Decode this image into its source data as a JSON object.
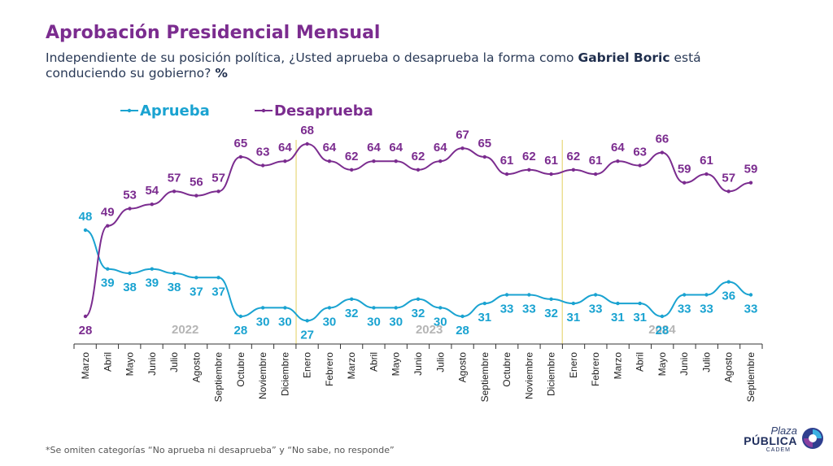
{
  "title": "Aprobación Presidencial Mensual",
  "subtitle_parts": {
    "pre": "Independiente de su posición política, ¿Usted aprueba o desaprueba la forma como ",
    "name": "Gabriel Boric",
    "post": " está conduciendo su gobierno?",
    "pct": "%"
  },
  "footnote": "*Se omiten categorías “No aprueba ni desaprueba” y “No sabe, no responde”",
  "logo": {
    "line1": "Plaza",
    "line2": "PÚBLICA",
    "line3": "CADEM"
  },
  "colors": {
    "title": "#7b2c8f",
    "aprueba": "#1aa3d1",
    "desaprueba": "#7b2c8f",
    "axis": "#333333",
    "year_divider": "#e8d87a",
    "year_label": "#b5b5b5"
  },
  "chart_data": {
    "type": "line",
    "categories": [
      "Marzo",
      "Abril",
      "Mayo",
      "Junio",
      "Julio",
      "Agosto",
      "Septiembre",
      "Octubre",
      "Noviembre",
      "Diciembre",
      "Enero",
      "Febrero",
      "Marzo",
      "Abril",
      "Mayo",
      "Junio",
      "Julio",
      "Agosto",
      "Septiembre",
      "Octubre",
      "Noviembre",
      "Diciembre",
      "Enero",
      "Febrero",
      "Marzo",
      "Abril",
      "Mayo",
      "Junio",
      "Julio",
      "Agosto",
      "Septiembre"
    ],
    "years": [
      {
        "label": "2022",
        "from": 0,
        "to": 9
      },
      {
        "label": "2023",
        "from": 10,
        "to": 21
      },
      {
        "label": "2024",
        "from": 22,
        "to": 30
      }
    ],
    "series": [
      {
        "name": "Aprueba",
        "color": "#1aa3d1",
        "values": [
          48,
          39,
          38,
          39,
          38,
          37,
          37,
          28,
          30,
          30,
          27,
          30,
          32,
          30,
          30,
          32,
          30,
          28,
          31,
          33,
          33,
          32,
          31,
          33,
          31,
          31,
          28,
          33,
          33,
          36,
          33
        ]
      },
      {
        "name": "Desaprueba",
        "color": "#7b2c8f",
        "values": [
          28,
          49,
          53,
          54,
          57,
          56,
          57,
          65,
          63,
          64,
          68,
          64,
          62,
          64,
          64,
          62,
          64,
          67,
          65,
          61,
          62,
          61,
          62,
          61,
          64,
          63,
          66,
          59,
          61,
          57,
          59
        ]
      }
    ],
    "legend_position": "top-left",
    "grid": false
  }
}
